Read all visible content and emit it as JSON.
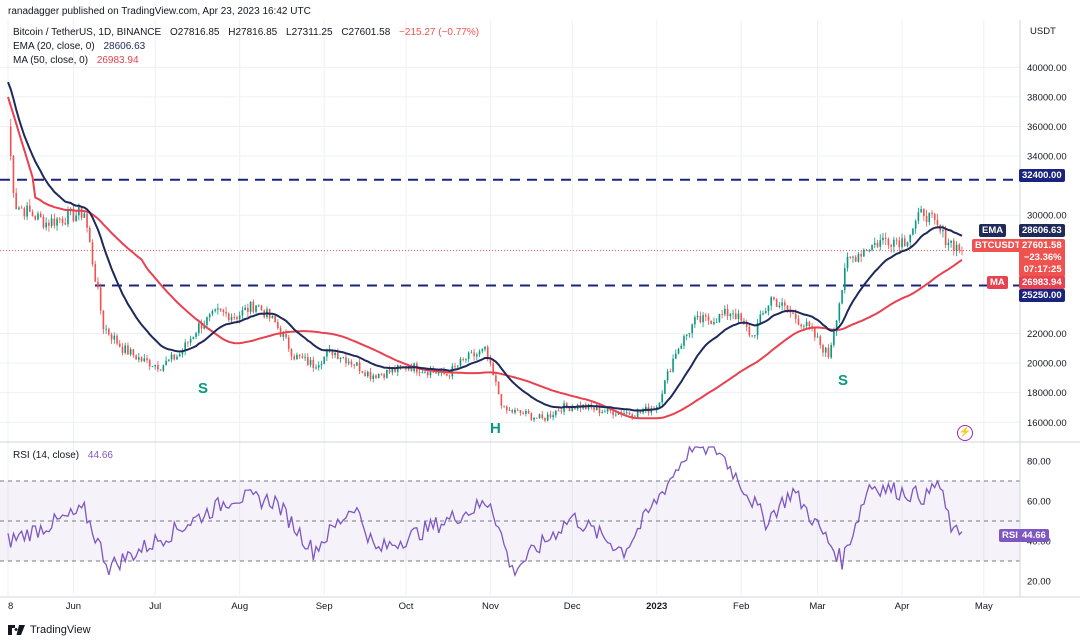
{
  "header": {
    "publisher": "ranadagger published on TradingView.com, Apr 23, 2023 16:42 UTC"
  },
  "symbol": {
    "title": "Bitcoin / TetherUS, 1D, BINANCE",
    "o_label": "O",
    "o": "27816.85",
    "h_label": "H",
    "h": "27816.85",
    "l_label": "L",
    "l": "27311.25",
    "c_label": "C",
    "c": "27601.58",
    "change": "−215.27 (−0.77%)"
  },
  "indicators": {
    "ema_label": "EMA (20, close, 0)",
    "ema_value": "28606.63",
    "ma_label": "MA (50, close, 0)",
    "ma_value": "26983.94",
    "rsi_label": "RSI (14, close)",
    "rsi_value": "44.66"
  },
  "axis": {
    "currency": "USDT",
    "price_ticks": [
      "40000.00",
      "38000.00",
      "36000.00",
      "34000.00",
      "30000.00",
      "22000.00",
      "20000.00",
      "18000.00",
      "16000.00"
    ],
    "rsi_ticks": [
      "80.00",
      "60.00",
      "40.00",
      "20.00"
    ],
    "time_ticks": [
      "8",
      "Jun",
      "Jul",
      "Aug",
      "Sep",
      "Oct",
      "Nov",
      "Dec",
      "2023",
      "Feb",
      "Mar",
      "Apr",
      "May"
    ]
  },
  "badges": {
    "level_high": "32400.00",
    "level_low": "25250.00",
    "ema_tag": "EMA",
    "ema_price": "28606.63",
    "sym_tag": "BTCUSDT",
    "sym_price": "27601.58",
    "sym_change": "−23.36%",
    "countdown": "07:17:25",
    "ma_tag": "MA",
    "ma_price": "26983.94",
    "rsi_tag": "RSI",
    "rsi_price": "44.66"
  },
  "patterns": {
    "left_shoulder": "S",
    "head": "H",
    "right_shoulder": "S"
  },
  "footer": {
    "brand": "TradingView"
  },
  "colors": {
    "bull": "#089981",
    "bear": "#ef5350",
    "ema": "#1e2a5a",
    "ma": "#e8414f",
    "rsi": "#7e57c2",
    "level": "#1a237e",
    "grid": "#eef0f4"
  },
  "chart_data": {
    "type": "candlestick",
    "title": "Bitcoin / TetherUS, 1D, BINANCE",
    "y_range": [
      14800,
      43200
    ],
    "rsi_range": [
      13,
      88
    ],
    "horizontal_levels": [
      32400,
      25250
    ],
    "weekly_close": [
      [
        "May 8",
        31000
      ],
      [
        "May 22",
        29500
      ],
      [
        "Jun 5",
        30200
      ],
      [
        "Jun 12",
        22500
      ],
      [
        "Jun 19",
        21000
      ],
      [
        "Jun 26",
        20200
      ],
      [
        "Jul 3",
        19800
      ],
      [
        "Jul 10",
        20600
      ],
      [
        "Jul 17",
        22500
      ],
      [
        "Jul 24",
        23400
      ],
      [
        "Jul 31",
        23200
      ],
      [
        "Aug 7",
        24000
      ],
      [
        "Aug 14",
        22700
      ],
      [
        "Aug 21",
        20500
      ],
      [
        "Aug 28",
        19900
      ],
      [
        "Sep 4",
        20800
      ],
      [
        "Sep 11",
        20100
      ],
      [
        "Sep 18",
        19200
      ],
      [
        "Sep 25",
        19400
      ],
      [
        "Oct 2",
        19800
      ],
      [
        "Oct 9",
        19500
      ],
      [
        "Oct 16",
        19200
      ],
      [
        "Oct 23",
        20300
      ],
      [
        "Oct 30",
        20800
      ],
      [
        "Nov 6",
        16800
      ],
      [
        "Nov 13",
        16600
      ],
      [
        "Nov 20",
        16200
      ],
      [
        "Nov 27",
        17000
      ],
      [
        "Dec 4",
        17100
      ],
      [
        "Dec 11",
        16800
      ],
      [
        "Dec 18",
        16700
      ],
      [
        "Dec 25",
        16600
      ],
      [
        "Jan 1",
        17100
      ],
      [
        "Jan 8",
        20800
      ],
      [
        "Jan 15",
        22800
      ],
      [
        "Jan 22",
        23000
      ],
      [
        "Jan 29",
        23500
      ],
      [
        "Feb 5",
        21800
      ],
      [
        "Feb 12",
        24400
      ],
      [
        "Feb 19",
        23400
      ],
      [
        "Feb 26",
        22300
      ],
      [
        "Mar 5",
        20500
      ],
      [
        "Mar 12",
        26900
      ],
      [
        "Mar 19",
        27800
      ],
      [
        "Mar 26",
        28400
      ],
      [
        "Apr 2",
        28300
      ],
      [
        "Apr 9",
        30300
      ],
      [
        "Apr 16",
        28600
      ],
      [
        "Apr 23",
        27600
      ]
    ],
    "ema20_last": 28606.63,
    "ma50_last": 26983.94,
    "rsi_last": 44.66,
    "rsi_points": [
      [
        "May 8",
        40
      ],
      [
        "Jun 5",
        55
      ],
      [
        "Jun 14",
        27
      ],
      [
        "Jul 8",
        45
      ],
      [
        "Jul 30",
        62
      ],
      [
        "Aug 14",
        60
      ],
      [
        "Aug 28",
        35
      ],
      [
        "Sep 12",
        58
      ],
      [
        "Sep 20",
        35
      ],
      [
        "Oct 24",
        55
      ],
      [
        "Nov 1",
        60
      ],
      [
        "Nov 9",
        25
      ],
      [
        "Dec 1",
        52
      ],
      [
        "Dec 20",
        35
      ],
      [
        "Jan 14",
        88
      ],
      [
        "Jan 24",
        85
      ],
      [
        "Feb 10",
        50
      ],
      [
        "Feb 20",
        65
      ],
      [
        "Mar 10",
        30
      ],
      [
        "Mar 20",
        68
      ],
      [
        "Apr 10",
        62
      ],
      [
        "Apr 14",
        70
      ],
      [
        "Apr 20",
        43
      ],
      [
        "Apr 23",
        44.66
      ]
    ]
  }
}
